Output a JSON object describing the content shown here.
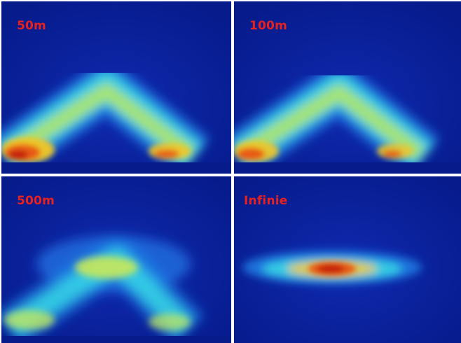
{
  "panels": [
    {
      "label": "50m"
    },
    {
      "label": "100m"
    },
    {
      "label": "500m"
    },
    {
      "label": "Infinie"
    }
  ],
  "colors": {
    "background": "#0a1a8c",
    "divider": "#ffffff",
    "label": "#e8211e",
    "colormap": [
      "#1a2ea8",
      "#1f7fe6",
      "#37d7e6",
      "#c8e85a",
      "#f2c623",
      "#e85a14",
      "#c41a10"
    ]
  }
}
